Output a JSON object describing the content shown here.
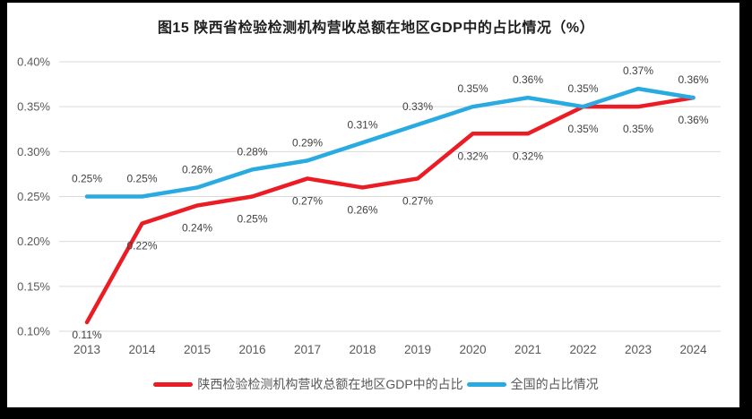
{
  "title": "图15 陕西省检验检测机构营收总额在地区GDP中的占比情况（%）",
  "chart_data": {
    "type": "line",
    "x": [
      "2013",
      "2014",
      "2015",
      "2016",
      "2017",
      "2018",
      "2019",
      "2020",
      "2021",
      "2022",
      "2023",
      "2024"
    ],
    "y_axis": {
      "min": 0.1,
      "max": 0.4,
      "step": 0.05,
      "unit": "%"
    },
    "y_ticks": [
      "0.10%",
      "0.15%",
      "0.20%",
      "0.25%",
      "0.30%",
      "0.35%",
      "0.40%"
    ],
    "grid": true,
    "legend_position": "bottom",
    "series": [
      {
        "name": "陕西检验检测机构营收总额在地区GDP中的占比",
        "color": "#EC1C24",
        "label_position": "below",
        "values": [
          0.11,
          0.22,
          0.24,
          0.25,
          0.27,
          0.26,
          0.27,
          0.32,
          0.32,
          0.35,
          0.35,
          0.36
        ],
        "labels": [
          "0.11%",
          "0.22%",
          "0.24%",
          "0.25%",
          "0.27%",
          "0.26%",
          "0.27%",
          "0.32%",
          "0.32%",
          "0.35%",
          "0.35%",
          "0.36%"
        ]
      },
      {
        "name": "全国的占比情况",
        "color": "#29ABE2",
        "label_position": "above",
        "values": [
          0.25,
          0.25,
          0.26,
          0.28,
          0.29,
          0.31,
          0.33,
          0.35,
          0.36,
          0.35,
          0.37,
          0.36
        ],
        "labels": [
          "0.25%",
          "0.25%",
          "0.26%",
          "0.28%",
          "0.29%",
          "0.31%",
          "0.33%",
          "0.35%",
          "0.36%",
          "0.35%",
          "0.37%",
          "0.36%"
        ]
      }
    ]
  }
}
